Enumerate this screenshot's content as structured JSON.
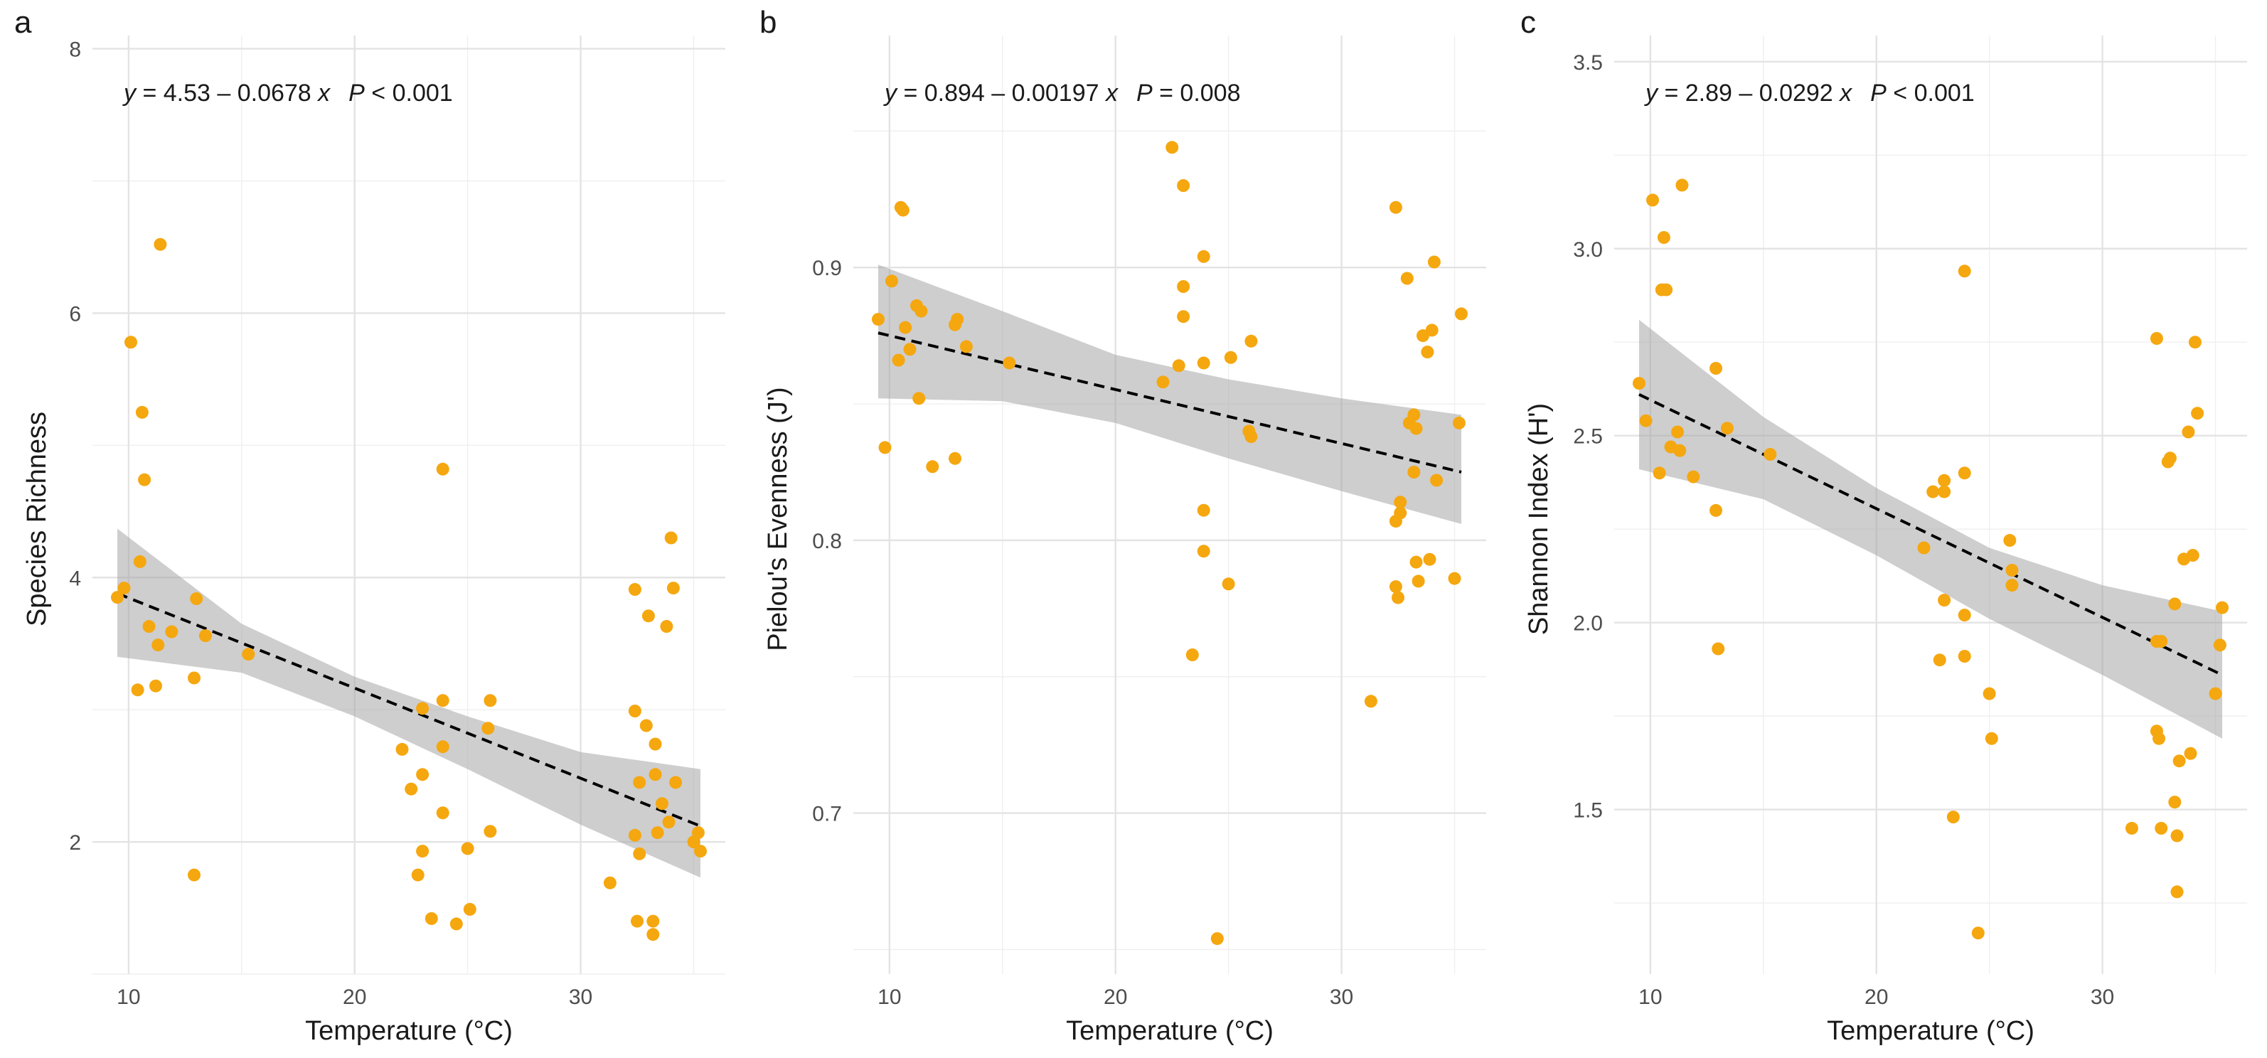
{
  "chart_data": [
    {
      "type": "scatter",
      "panel_label": "a",
      "xlabel": "Temperature (°C)",
      "ylabel": "Species Richness",
      "xlim": [
        8.4,
        36.4
      ],
      "ylim": [
        1.0,
        8.1
      ],
      "xticks": [
        10,
        20,
        30
      ],
      "yticks": [
        2,
        4,
        6,
        8
      ],
      "equation": {
        "y_label": "y",
        "rest": " = 4.53 – 0.0678 ",
        "x_label": "x",
        "p_label": "P",
        "p_rest": " < 0.001"
      },
      "fit": {
        "type": "linear",
        "x_range": [
          9.5,
          35.3
        ],
        "y_range": [
          3.88,
          2.12
        ]
      },
      "confidence_band": {
        "x": [
          9.5,
          15,
          20,
          25,
          30,
          35.3
        ],
        "lower": [
          3.4,
          3.28,
          2.95,
          2.55,
          2.13,
          1.73
        ],
        "upper": [
          4.37,
          3.65,
          3.25,
          2.95,
          2.68,
          2.55
        ]
      },
      "grid": true,
      "points": [
        [
          9.5,
          3.85
        ],
        [
          9.8,
          3.92
        ],
        [
          10.1,
          5.78
        ],
        [
          10.4,
          3.15
        ],
        [
          10.5,
          4.12
        ],
        [
          10.6,
          5.25
        ],
        [
          10.7,
          4.74
        ],
        [
          10.9,
          3.63
        ],
        [
          11.2,
          3.18
        ],
        [
          11.3,
          3.49
        ],
        [
          11.4,
          6.52
        ],
        [
          11.9,
          3.59
        ],
        [
          12.9,
          3.24
        ],
        [
          12.9,
          1.75
        ],
        [
          13.0,
          3.84
        ],
        [
          13.4,
          3.56
        ],
        [
          15.3,
          3.42
        ],
        [
          22.1,
          2.7
        ],
        [
          22.5,
          2.4
        ],
        [
          22.8,
          1.75
        ],
        [
          23.0,
          2.51
        ],
        [
          23.0,
          3.01
        ],
        [
          23.0,
          1.93
        ],
        [
          23.4,
          1.42
        ],
        [
          23.9,
          4.82
        ],
        [
          23.9,
          3.07
        ],
        [
          23.9,
          2.72
        ],
        [
          23.9,
          2.22
        ],
        [
          24.5,
          1.38
        ],
        [
          25.0,
          1.95
        ],
        [
          25.1,
          1.49
        ],
        [
          25.9,
          2.86
        ],
        [
          26.0,
          3.07
        ],
        [
          26.0,
          2.08
        ],
        [
          31.3,
          1.69
        ],
        [
          32.4,
          3.91
        ],
        [
          32.4,
          2.99
        ],
        [
          32.4,
          2.05
        ],
        [
          32.5,
          1.4
        ],
        [
          32.6,
          2.45
        ],
        [
          32.6,
          1.91
        ],
        [
          32.9,
          2.88
        ],
        [
          33.0,
          3.71
        ],
        [
          33.2,
          1.4
        ],
        [
          33.2,
          1.3
        ],
        [
          33.3,
          2.74
        ],
        [
          33.3,
          2.51
        ],
        [
          33.4,
          2.07
        ],
        [
          33.6,
          2.29
        ],
        [
          33.8,
          3.63
        ],
        [
          33.9,
          2.15
        ],
        [
          34.0,
          4.3
        ],
        [
          34.1,
          3.92
        ],
        [
          34.2,
          2.45
        ],
        [
          35.0,
          2.0
        ],
        [
          35.2,
          2.07
        ],
        [
          35.3,
          1.93
        ]
      ]
    },
    {
      "type": "scatter",
      "panel_label": "b",
      "xlabel": "Temperature (°C)",
      "ylabel": "Pielou's Evenness (J')",
      "xlim": [
        8.4,
        36.4
      ],
      "ylim": [
        0.641,
        0.985
      ],
      "xticks": [
        10,
        20,
        30
      ],
      "yticks": [
        0.7,
        0.8,
        0.9
      ],
      "equation": {
        "y_label": "y",
        "rest": " = 0.894 – 0.00197 ",
        "x_label": "x",
        "p_label": "P",
        "p_rest": " = 0.008"
      },
      "fit": {
        "type": "linear",
        "x_range": [
          9.5,
          35.3
        ],
        "y_range": [
          0.876,
          0.825
        ]
      },
      "confidence_band": {
        "x": [
          9.5,
          15,
          20,
          25,
          30,
          35.3
        ],
        "lower": [
          0.852,
          0.851,
          0.843,
          0.83,
          0.818,
          0.806
        ],
        "upper": [
          0.901,
          0.884,
          0.868,
          0.859,
          0.852,
          0.846
        ]
      },
      "grid": true,
      "points": [
        [
          9.5,
          0.881
        ],
        [
          9.8,
          0.834
        ],
        [
          10.1,
          0.895
        ],
        [
          10.4,
          0.866
        ],
        [
          10.5,
          0.922
        ],
        [
          10.6,
          0.921
        ],
        [
          10.7,
          0.878
        ],
        [
          10.9,
          0.87
        ],
        [
          11.2,
          0.886
        ],
        [
          11.3,
          0.852
        ],
        [
          11.4,
          0.884
        ],
        [
          11.9,
          0.827
        ],
        [
          12.9,
          0.83
        ],
        [
          12.9,
          0.879
        ],
        [
          13.0,
          0.881
        ],
        [
          13.4,
          0.871
        ],
        [
          15.3,
          0.865
        ],
        [
          22.1,
          0.858
        ],
        [
          22.5,
          0.944
        ],
        [
          22.8,
          0.864
        ],
        [
          23.0,
          0.93
        ],
        [
          23.0,
          0.893
        ],
        [
          23.0,
          0.882
        ],
        [
          23.4,
          0.758
        ],
        [
          23.9,
          0.904
        ],
        [
          23.9,
          0.865
        ],
        [
          23.9,
          0.811
        ],
        [
          23.9,
          0.796
        ],
        [
          24.5,
          0.654
        ],
        [
          25.0,
          0.784
        ],
        [
          25.1,
          0.867
        ],
        [
          25.9,
          0.84
        ],
        [
          26.0,
          0.873
        ],
        [
          26.0,
          0.838
        ],
        [
          31.3,
          0.741
        ],
        [
          32.4,
          0.922
        ],
        [
          32.4,
          0.807
        ],
        [
          32.4,
          0.783
        ],
        [
          32.5,
          0.779
        ],
        [
          32.6,
          0.81
        ],
        [
          32.6,
          0.814
        ],
        [
          32.9,
          0.896
        ],
        [
          33.0,
          0.843
        ],
        [
          33.2,
          0.846
        ],
        [
          33.2,
          0.825
        ],
        [
          33.3,
          0.841
        ],
        [
          33.3,
          0.792
        ],
        [
          33.4,
          0.785
        ],
        [
          33.6,
          0.875
        ],
        [
          33.8,
          0.869
        ],
        [
          33.9,
          0.793
        ],
        [
          34.0,
          0.877
        ],
        [
          34.1,
          0.902
        ],
        [
          34.2,
          0.822
        ],
        [
          35.0,
          0.786
        ],
        [
          35.2,
          0.843
        ],
        [
          35.3,
          0.883
        ]
      ]
    },
    {
      "type": "scatter",
      "panel_label": "c",
      "xlabel": "Temperature (°C)",
      "ylabel": "Shannon Index (H')",
      "xlim": [
        8.4,
        36.4
      ],
      "ylim": [
        1.06,
        3.57
      ],
      "xticks": [
        10,
        20,
        30
      ],
      "yticks": [
        1.5,
        2.0,
        2.5,
        3.0,
        3.5
      ],
      "ytick_labels": [
        "1.5",
        "2.0",
        "2.5",
        "3.0",
        "3.5"
      ],
      "equation": {
        "y_label": "y",
        "rest": " = 2.89 – 0.0292 ",
        "x_label": "x",
        "p_label": "P",
        "p_rest": " < 0.001"
      },
      "fit": {
        "type": "linear",
        "x_range": [
          9.5,
          35.3
        ],
        "y_range": [
          2.61,
          1.86
        ]
      },
      "confidence_band": {
        "x": [
          9.5,
          15,
          20,
          25,
          30,
          35.3
        ],
        "lower": [
          2.41,
          2.33,
          2.18,
          2.01,
          1.86,
          1.69
        ],
        "upper": [
          2.81,
          2.55,
          2.36,
          2.2,
          2.1,
          2.03
        ]
      },
      "grid": true,
      "points": [
        [
          9.5,
          2.64
        ],
        [
          9.8,
          2.54
        ],
        [
          10.1,
          3.13
        ],
        [
          10.4,
          2.4
        ],
        [
          10.5,
          2.89
        ],
        [
          10.6,
          3.03
        ],
        [
          10.7,
          2.89
        ],
        [
          10.9,
          2.47
        ],
        [
          11.2,
          2.51
        ],
        [
          11.3,
          2.46
        ],
        [
          11.4,
          3.17
        ],
        [
          11.9,
          2.39
        ],
        [
          12.9,
          2.3
        ],
        [
          12.9,
          2.68
        ],
        [
          13.0,
          1.93
        ],
        [
          13.4,
          2.52
        ],
        [
          15.3,
          2.45
        ],
        [
          22.1,
          2.2
        ],
        [
          22.5,
          2.35
        ],
        [
          22.8,
          1.9
        ],
        [
          23.0,
          2.38
        ],
        [
          23.0,
          2.35
        ],
        [
          23.0,
          2.06
        ],
        [
          23.4,
          1.48
        ],
        [
          23.9,
          2.94
        ],
        [
          23.9,
          2.4
        ],
        [
          23.9,
          2.02
        ],
        [
          23.9,
          1.91
        ],
        [
          24.5,
          1.17
        ],
        [
          25.0,
          1.81
        ],
        [
          25.1,
          1.69
        ],
        [
          25.9,
          2.22
        ],
        [
          26.0,
          2.14
        ],
        [
          26.0,
          2.1
        ],
        [
          31.3,
          1.45
        ],
        [
          32.4,
          2.76
        ],
        [
          32.4,
          1.95
        ],
        [
          32.4,
          1.71
        ],
        [
          32.5,
          1.69
        ],
        [
          32.6,
          1.45
        ],
        [
          32.6,
          1.95
        ],
        [
          32.9,
          2.43
        ],
        [
          33.0,
          2.44
        ],
        [
          33.2,
          2.05
        ],
        [
          33.2,
          1.52
        ],
        [
          33.3,
          1.43
        ],
        [
          33.3,
          1.28
        ],
        [
          33.4,
          1.63
        ],
        [
          33.6,
          2.17
        ],
        [
          33.8,
          2.51
        ],
        [
          33.9,
          1.65
        ],
        [
          34.0,
          2.18
        ],
        [
          34.1,
          2.75
        ],
        [
          34.2,
          2.56
        ],
        [
          35.0,
          1.81
        ],
        [
          35.2,
          1.94
        ],
        [
          35.3,
          2.04
        ]
      ]
    }
  ]
}
